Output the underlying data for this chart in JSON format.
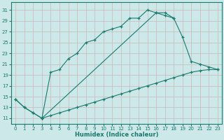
{
  "xlabel": "Humidex (Indice chaleur)",
  "bg_color": "#cce8e8",
  "grid_color": "#b0d0d0",
  "line_color": "#1a7a6e",
  "xlim": [
    -0.5,
    23.5
  ],
  "ylim": [
    10.0,
    32.5
  ],
  "xticks": [
    0,
    1,
    2,
    3,
    4,
    5,
    6,
    7,
    8,
    9,
    10,
    11,
    12,
    13,
    14,
    15,
    16,
    17,
    18,
    19,
    20,
    21,
    22,
    23
  ],
  "yticks": [
    11,
    13,
    15,
    17,
    19,
    21,
    23,
    25,
    27,
    29,
    31
  ],
  "curve1_x": [
    0,
    1,
    2,
    3,
    4,
    5,
    6,
    7,
    8,
    9,
    10,
    11,
    12,
    13,
    14,
    15,
    16,
    17,
    18
  ],
  "curve1_y": [
    14.5,
    13.0,
    12.0,
    11.0,
    19.5,
    20.0,
    22.0,
    23.0,
    25.0,
    25.5,
    27.0,
    27.5,
    28.0,
    29.5,
    29.5,
    31.0,
    30.5,
    30.5,
    29.5
  ],
  "curve2_x": [
    0,
    1,
    2,
    3,
    16,
    17,
    18,
    19,
    20,
    21,
    22,
    23
  ],
  "curve2_y": [
    14.5,
    13.0,
    12.0,
    11.0,
    30.5,
    30.0,
    29.5,
    26.0,
    21.5,
    21.0,
    20.5,
    20.0
  ],
  "curve3_x": [
    3,
    4,
    5,
    6,
    7,
    8,
    9,
    10,
    11,
    12,
    13,
    14,
    15,
    16,
    17,
    18,
    19,
    20,
    21,
    22,
    23
  ],
  "curve3_y": [
    11.0,
    11.5,
    12.0,
    12.5,
    13.0,
    13.5,
    14.0,
    14.5,
    15.0,
    15.5,
    16.0,
    16.5,
    17.0,
    17.5,
    18.0,
    18.5,
    19.0,
    19.5,
    19.8,
    20.0,
    20.0
  ]
}
